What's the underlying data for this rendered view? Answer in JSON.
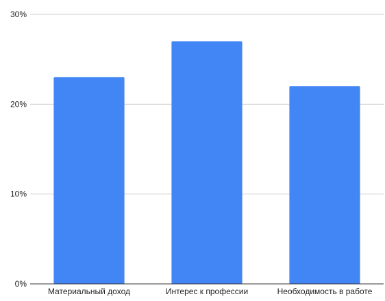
{
  "chart_data": {
    "type": "bar",
    "categories": [
      "Материальный доход",
      "Интерес к профессии",
      "Необходимость в работе"
    ],
    "values": [
      23,
      27,
      22
    ],
    "ylim": [
      0,
      30
    ],
    "yticks": [
      0,
      10,
      20,
      30
    ],
    "ytick_labels": [
      "0%",
      "10%",
      "20%",
      "30%"
    ],
    "grid": true,
    "bar_color": "#4285F4",
    "grid_color": "#cccccc",
    "axis_color": "#333333"
  }
}
